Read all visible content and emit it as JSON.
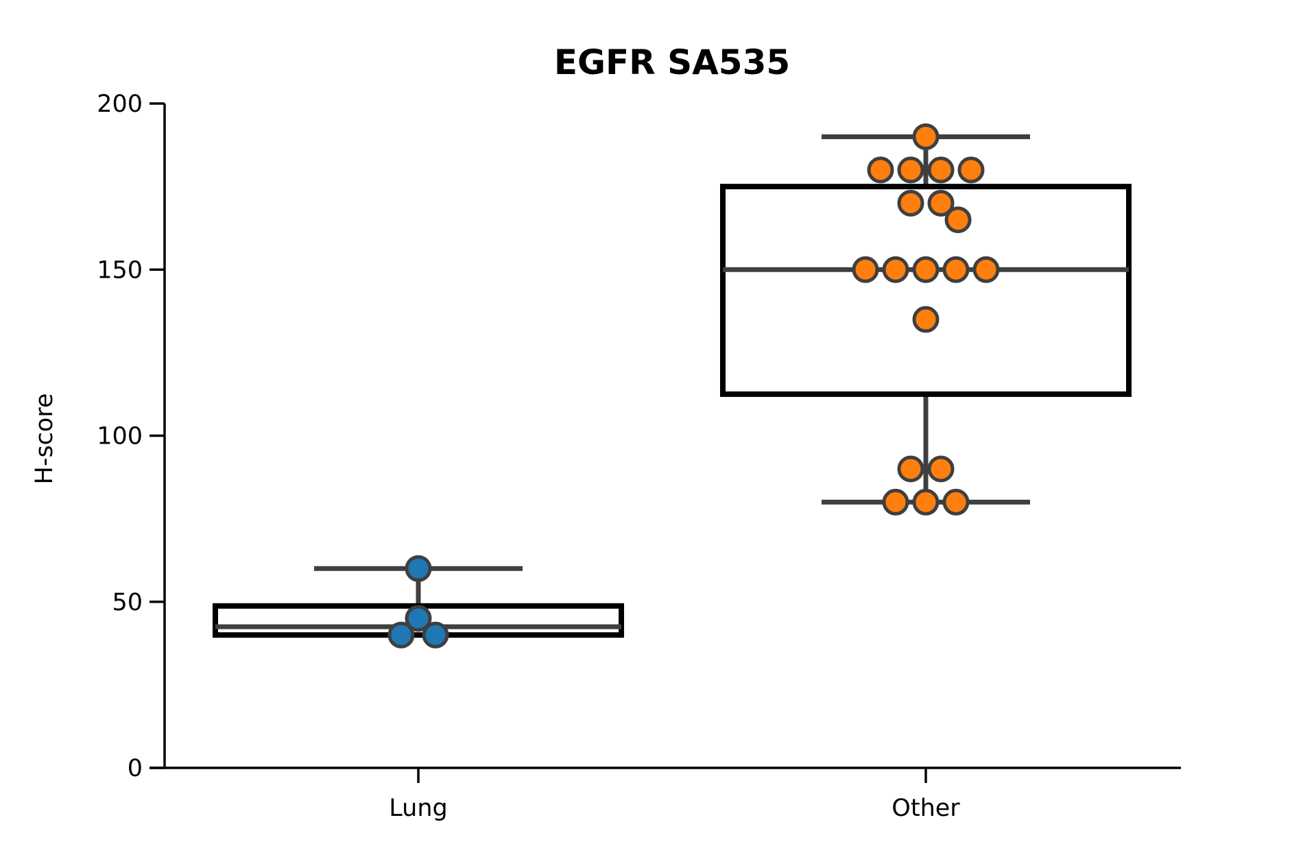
{
  "chart_data": {
    "type": "box",
    "title": "EGFR SA535",
    "xlabel": "",
    "ylabel": "H-score",
    "ylim": [
      0,
      200
    ],
    "yticks": [
      0,
      50,
      100,
      150,
      200
    ],
    "ytick_labels": [
      "0",
      "50",
      "100",
      "150",
      "200"
    ],
    "categories": [
      "Lung",
      "Other"
    ],
    "grid": false,
    "legend": "none",
    "boxes": [
      {
        "category": "Lung",
        "q1": 40,
        "median": 42.5,
        "q3": 48.75,
        "whisker_low": 40,
        "whisker_high": 60
      },
      {
        "category": "Other",
        "q1": 112.5,
        "median": 150,
        "q3": 175,
        "whisker_low": 80,
        "whisker_high": 190
      }
    ],
    "points": [
      {
        "category": "Lung",
        "values": [
          60,
          45,
          40,
          40
        ]
      },
      {
        "category": "Other",
        "values": [
          190,
          180,
          180,
          180,
          180,
          170,
          170,
          165,
          150,
          150,
          150,
          150,
          150,
          135,
          90,
          90,
          80,
          80,
          80
        ]
      }
    ],
    "colors": {
      "Lung": "#1f77b4",
      "Other": "#ff7f0e",
      "box": "#000000",
      "whisker": "#3f3f3f",
      "point_edge": "#3f3f3f"
    }
  }
}
